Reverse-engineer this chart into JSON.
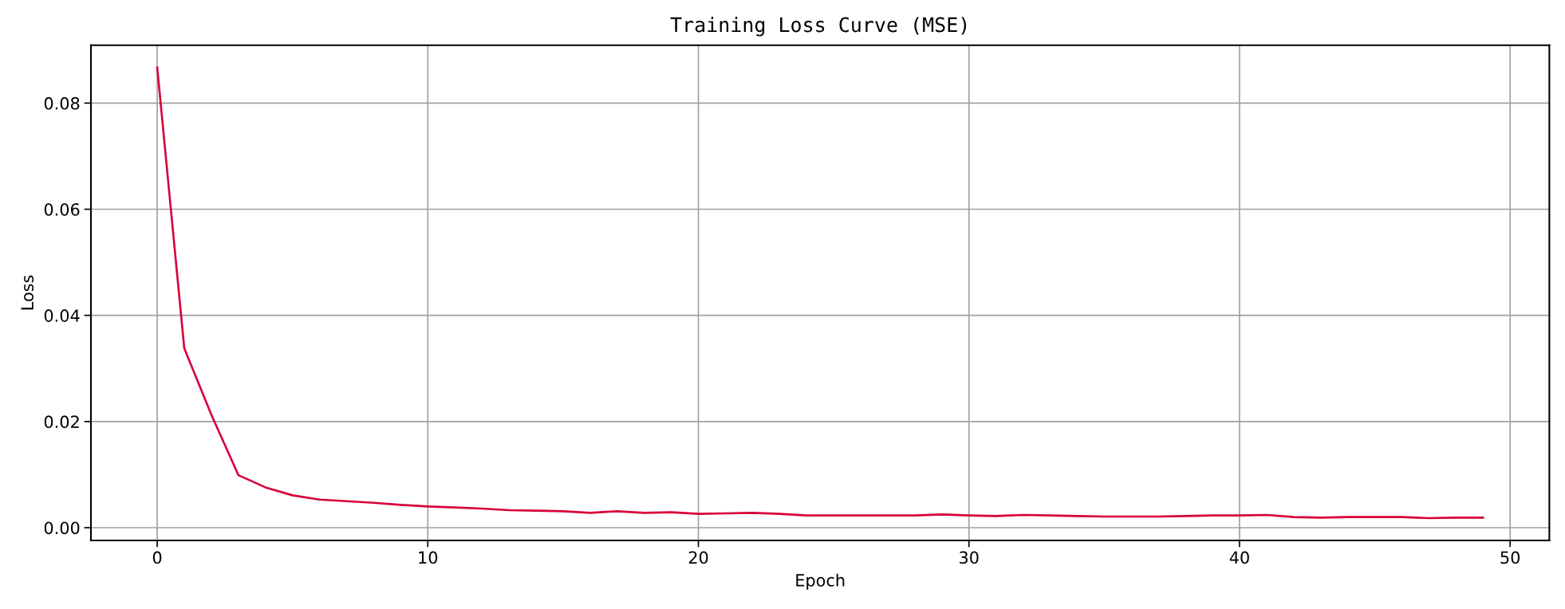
{
  "chart_data": {
    "type": "line",
    "title": "Training Loss Curve (MSE)",
    "xlabel": "Epoch",
    "ylabel": "Loss",
    "x": [
      0,
      1,
      2,
      3,
      4,
      5,
      6,
      7,
      8,
      9,
      10,
      11,
      12,
      13,
      14,
      15,
      16,
      17,
      18,
      19,
      20,
      21,
      22,
      23,
      24,
      25,
      26,
      27,
      28,
      29,
      30,
      31,
      32,
      33,
      34,
      35,
      36,
      37,
      38,
      39,
      40,
      41,
      42,
      43,
      44,
      45,
      46,
      47,
      48,
      49
    ],
    "series": [
      {
        "color": "#d7003a",
        "values": [
          0.0867,
          0.0338,
          0.0213,
          0.0099,
          0.0076,
          0.0061,
          0.0053,
          0.005,
          0.0047,
          0.0043,
          0.004,
          0.0038,
          0.0036,
          0.0033,
          0.0032,
          0.0031,
          0.0028,
          0.0031,
          0.0028,
          0.0029,
          0.0026,
          0.0027,
          0.0028,
          0.0026,
          0.0023,
          0.0023,
          0.0023,
          0.0023,
          0.0023,
          0.0025,
          0.0023,
          0.0022,
          0.0024,
          0.0023,
          0.0022,
          0.0021,
          0.0021,
          0.0021,
          0.0022,
          0.0023,
          0.0023,
          0.0024,
          0.002,
          0.0019,
          0.002,
          0.002,
          0.002,
          0.0018,
          0.0019,
          0.0019
        ]
      }
    ],
    "xlim": [
      -2.45,
      51.45
    ],
    "ylim": [
      -0.0024,
      0.0909
    ],
    "xticks": [
      0,
      10,
      20,
      30,
      40,
      50
    ],
    "yticks": [
      {
        "value": 0,
        "label": "0.00"
      },
      0.02,
      0.04,
      0.06,
      0.08
    ],
    "grid": true,
    "marker": "none",
    "line_style": "solid"
  }
}
